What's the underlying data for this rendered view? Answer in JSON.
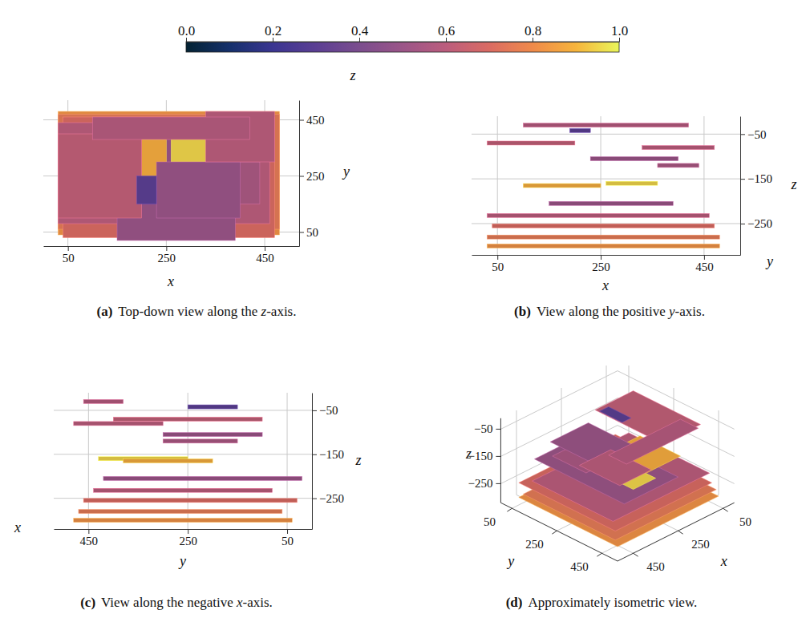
{
  "colorbar": {
    "lim": [
      0,
      1
    ],
    "ticks": [
      {
        "value": 0,
        "label": "0.0"
      },
      0.2,
      0.4,
      0.6,
      0.8,
      {
        "value": 1,
        "label": "1.0"
      }
    ]
  },
  "surfaces": [
    {
      "x": [
        30,
        480
      ],
      "y": [
        40,
        480
      ],
      "z": -300,
      "value": 0.82
    },
    {
      "x": [
        30,
        480
      ],
      "y": [
        60,
        470
      ],
      "z": -280,
      "value": 0.75
    },
    {
      "x": [
        40,
        470
      ],
      "y": [
        30,
        460
      ],
      "z": -255,
      "value": 0.7
    },
    {
      "x": [
        30,
        460
      ],
      "y": [
        80,
        440
      ],
      "z": -232,
      "value": 0.6
    },
    {
      "x": [
        150,
        390
      ],
      "y": [
        20,
        420
      ],
      "z": -205,
      "value": 0.5
    },
    {
      "x": [
        260,
        360
      ],
      "y": [
        250,
        430
      ],
      "z": -160,
      "value": 0.95
    },
    {
      "x": [
        100,
        250
      ],
      "y": [
        200,
        380
      ],
      "z": -165,
      "value": 0.88
    },
    {
      "x": [
        360,
        440
      ],
      "y": [
        150,
        300
      ],
      "z": -120,
      "value": 0.55
    },
    {
      "x": [
        230,
        400
      ],
      "y": [
        100,
        300
      ],
      "z": -105,
      "value": 0.5
    },
    {
      "x": [
        330,
        470
      ],
      "y": [
        300,
        480
      ],
      "z": -80,
      "value": 0.6
    },
    {
      "x": [
        30,
        200
      ],
      "y": [
        100,
        400
      ],
      "z": -70,
      "value": 0.62
    },
    {
      "x": [
        190,
        230
      ],
      "y": [
        150,
        250
      ],
      "z": -42,
      "value": 0.3
    },
    {
      "x": [
        100,
        420
      ],
      "y": [
        380,
        460
      ],
      "z": -30,
      "value": 0.58
    }
  ],
  "chart_data": [
    {
      "type": "surface3d",
      "label": "(a)",
      "title": "Top-down view along the z-axis.",
      "xlabel": "x",
      "ylabel": "y",
      "zlabel": "z",
      "xlim": [
        0,
        520
      ],
      "xticks": [
        50,
        250,
        450
      ],
      "ylim": [
        0,
        520
      ],
      "yticks": [
        50,
        250,
        450
      ],
      "grid": true
    },
    {
      "type": "surface3d",
      "label": "(b)",
      "title": "View along the positive y-axis.",
      "xlabel": "x",
      "ylabel": "y",
      "zlabel": "z",
      "xlim": [
        0,
        520
      ],
      "xticks": [
        50,
        250,
        450
      ],
      "zlim": [
        -320,
        -10
      ],
      "zticks": [
        {
          "value": -250,
          "label": "−250"
        },
        {
          "value": -150,
          "label": "−150"
        },
        {
          "value": -50,
          "label": "−50"
        }
      ],
      "grid": true
    },
    {
      "type": "surface3d",
      "label": "(c)",
      "title": "View along the negative x-axis.",
      "xlabel": "x",
      "ylabel": "y",
      "zlabel": "z",
      "ylim": [
        0,
        520
      ],
      "yticks": [
        50,
        250,
        450
      ],
      "zlim": [
        -320,
        -10
      ],
      "zticks": [
        {
          "value": -250,
          "label": "−250"
        },
        {
          "value": -150,
          "label": "−150"
        },
        {
          "value": -50,
          "label": "−50"
        }
      ],
      "grid": true
    },
    {
      "type": "surface3d",
      "label": "(d)",
      "title": "Approximately isometric view.",
      "xlabel": "x",
      "ylabel": "y",
      "zlabel": "z",
      "xlim": [
        0,
        520
      ],
      "xticks": [
        50,
        250,
        450
      ],
      "ylim": [
        0,
        520
      ],
      "yticks": [
        50,
        250,
        450
      ],
      "zlim": [
        -320,
        -10
      ],
      "zticks": [
        {
          "value": -250,
          "label": "−250"
        },
        {
          "value": -150,
          "label": "−150"
        },
        {
          "value": -50,
          "label": "−50"
        }
      ],
      "grid": true
    }
  ]
}
